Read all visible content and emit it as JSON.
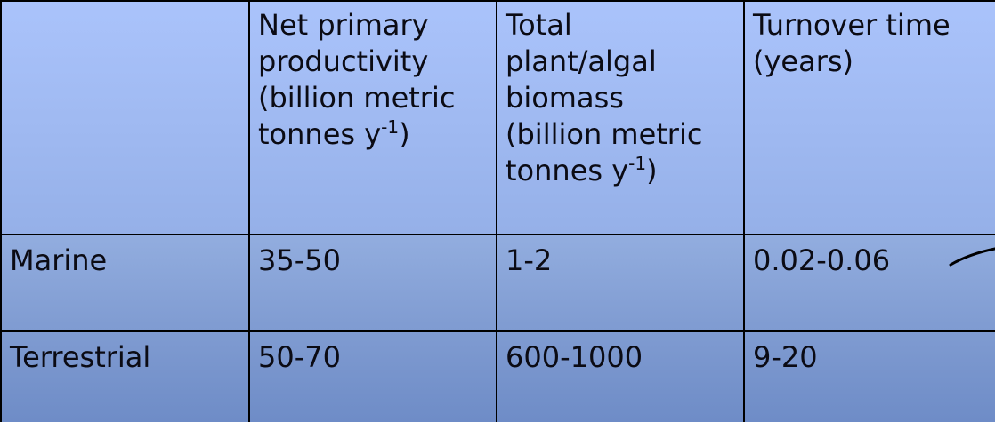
{
  "table": {
    "header": {
      "row_label": "",
      "columns": [
        {
          "lines": [
            "Net primary",
            "productivity",
            "(billion metric"
          ],
          "last_line_text": "tonnes y",
          "last_line_sup": "-1",
          "last_line_suffix": ")"
        },
        {
          "lines": [
            "Total",
            "plant/algal",
            "biomass",
            "(billion metric"
          ],
          "last_line_text": "tonnes y",
          "last_line_sup": "-1",
          "last_line_suffix": ")"
        },
        {
          "lines": [
            "Turnover time",
            "(years)"
          ]
        }
      ]
    },
    "rows": [
      {
        "label": "Marine",
        "net_primary_productivity": "35-50",
        "total_biomass": "1-2",
        "turnover_time": "0.02-0.06"
      },
      {
        "label": "Terrestrial",
        "net_primary_productivity": "50-70",
        "total_biomass": "600-1000",
        "turnover_time": "9-20"
      }
    ]
  },
  "colors": {
    "header_fill": "#a4bef6",
    "row_fill": "#8aa5d9",
    "border": "#000000",
    "text": "#0b0b14"
  }
}
